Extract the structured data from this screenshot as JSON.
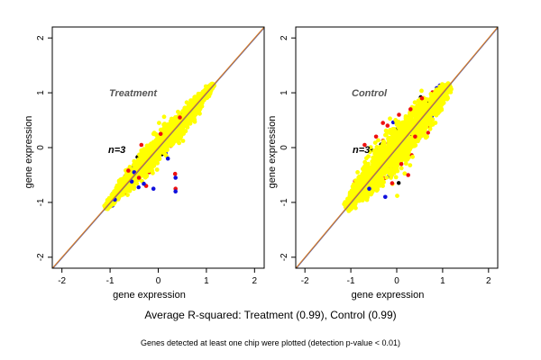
{
  "captions": {
    "main": "Average R-squared: Treatment (0.99), Control (0.99)",
    "footnote": "Genes detected at least one chip were plotted (detection p-value < 0.01)"
  },
  "colors": {
    "identity_line": "#e08020",
    "identity_line_shadow": "#6060a0",
    "series_blue": "#1010dd",
    "series_red": "#ee1010",
    "series_yellow": "#ffff00",
    "series_black": "#000000"
  },
  "chart_data": [
    {
      "type": "scatter",
      "panel_label": "Treatment",
      "n_label": "n=3",
      "xlabel": "gene expression",
      "ylabel": "gene expression",
      "xlim": [
        -2.2,
        2.2
      ],
      "ylim": [
        -2.2,
        2.2
      ],
      "x_ticks": [
        "-2",
        "-1",
        "0",
        "1",
        "2"
      ],
      "y_ticks": [
        "-2",
        "-1",
        "0",
        "1",
        "2"
      ],
      "grid": false,
      "reference_line": "y = x",
      "band": {
        "x_from": -1.1,
        "x_to": 1.15,
        "half_width_at_center": 0.2
      },
      "outliers": [
        {
          "x": 0.35,
          "y": -0.48,
          "color": "red"
        },
        {
          "x": 0.36,
          "y": -0.55,
          "color": "blue"
        },
        {
          "x": 0.36,
          "y": -0.75,
          "color": "red"
        },
        {
          "x": 0.36,
          "y": -0.8,
          "color": "blue"
        },
        {
          "x": -0.25,
          "y": -0.7,
          "color": "red"
        },
        {
          "x": -0.3,
          "y": -0.66,
          "color": "blue"
        },
        {
          "x": -0.1,
          "y": -0.75,
          "color": "blue"
        },
        {
          "x": -0.55,
          "y": -0.62,
          "color": "blue"
        },
        {
          "x": -0.5,
          "y": -0.45,
          "color": "blue"
        },
        {
          "x": -0.62,
          "y": -0.42,
          "color": "red"
        },
        {
          "x": -0.9,
          "y": -0.95,
          "color": "blue"
        },
        {
          "x": -0.4,
          "y": -0.55,
          "color": "red"
        },
        {
          "x": 0.2,
          "y": -0.2,
          "color": "blue"
        },
        {
          "x": 0.05,
          "y": 0.25,
          "color": "red"
        },
        {
          "x": 0.45,
          "y": 0.55,
          "color": "red"
        },
        {
          "x": -0.35,
          "y": 0.05,
          "color": "red"
        }
      ]
    },
    {
      "type": "scatter",
      "panel_label": "Control",
      "n_label": "n=3",
      "xlabel": "gene expression",
      "ylabel": "gene expression",
      "xlim": [
        -2.2,
        2.2
      ],
      "ylim": [
        -2.2,
        2.2
      ],
      "x_ticks": [
        "-2",
        "-1",
        "0",
        "1",
        "2"
      ],
      "y_ticks": [
        "-2",
        "-1",
        "0",
        "1",
        "2"
      ],
      "grid": false,
      "reference_line": "y = x",
      "band": {
        "x_from": -1.1,
        "x_to": 1.15,
        "half_width_at_center": 0.35
      },
      "outliers": [
        {
          "x": -0.45,
          "y": 0.2,
          "color": "red"
        },
        {
          "x": -0.3,
          "y": 0.45,
          "color": "red"
        },
        {
          "x": -0.2,
          "y": 0.4,
          "color": "red"
        },
        {
          "x": 0.05,
          "y": 0.6,
          "color": "red"
        },
        {
          "x": 0.3,
          "y": 0.7,
          "color": "red"
        },
        {
          "x": -0.7,
          "y": 0.05,
          "color": "red"
        },
        {
          "x": 0.4,
          "y": 0.2,
          "color": "red"
        },
        {
          "x": -0.25,
          "y": -0.9,
          "color": "blue"
        },
        {
          "x": -0.6,
          "y": -0.75,
          "color": "blue"
        },
        {
          "x": 0.25,
          "y": -0.5,
          "color": "red"
        },
        {
          "x": -0.1,
          "y": -0.65,
          "color": "red"
        },
        {
          "x": 0.55,
          "y": 0.9,
          "color": "red"
        },
        {
          "x": 0.1,
          "y": -0.3,
          "color": "red"
        }
      ]
    }
  ]
}
